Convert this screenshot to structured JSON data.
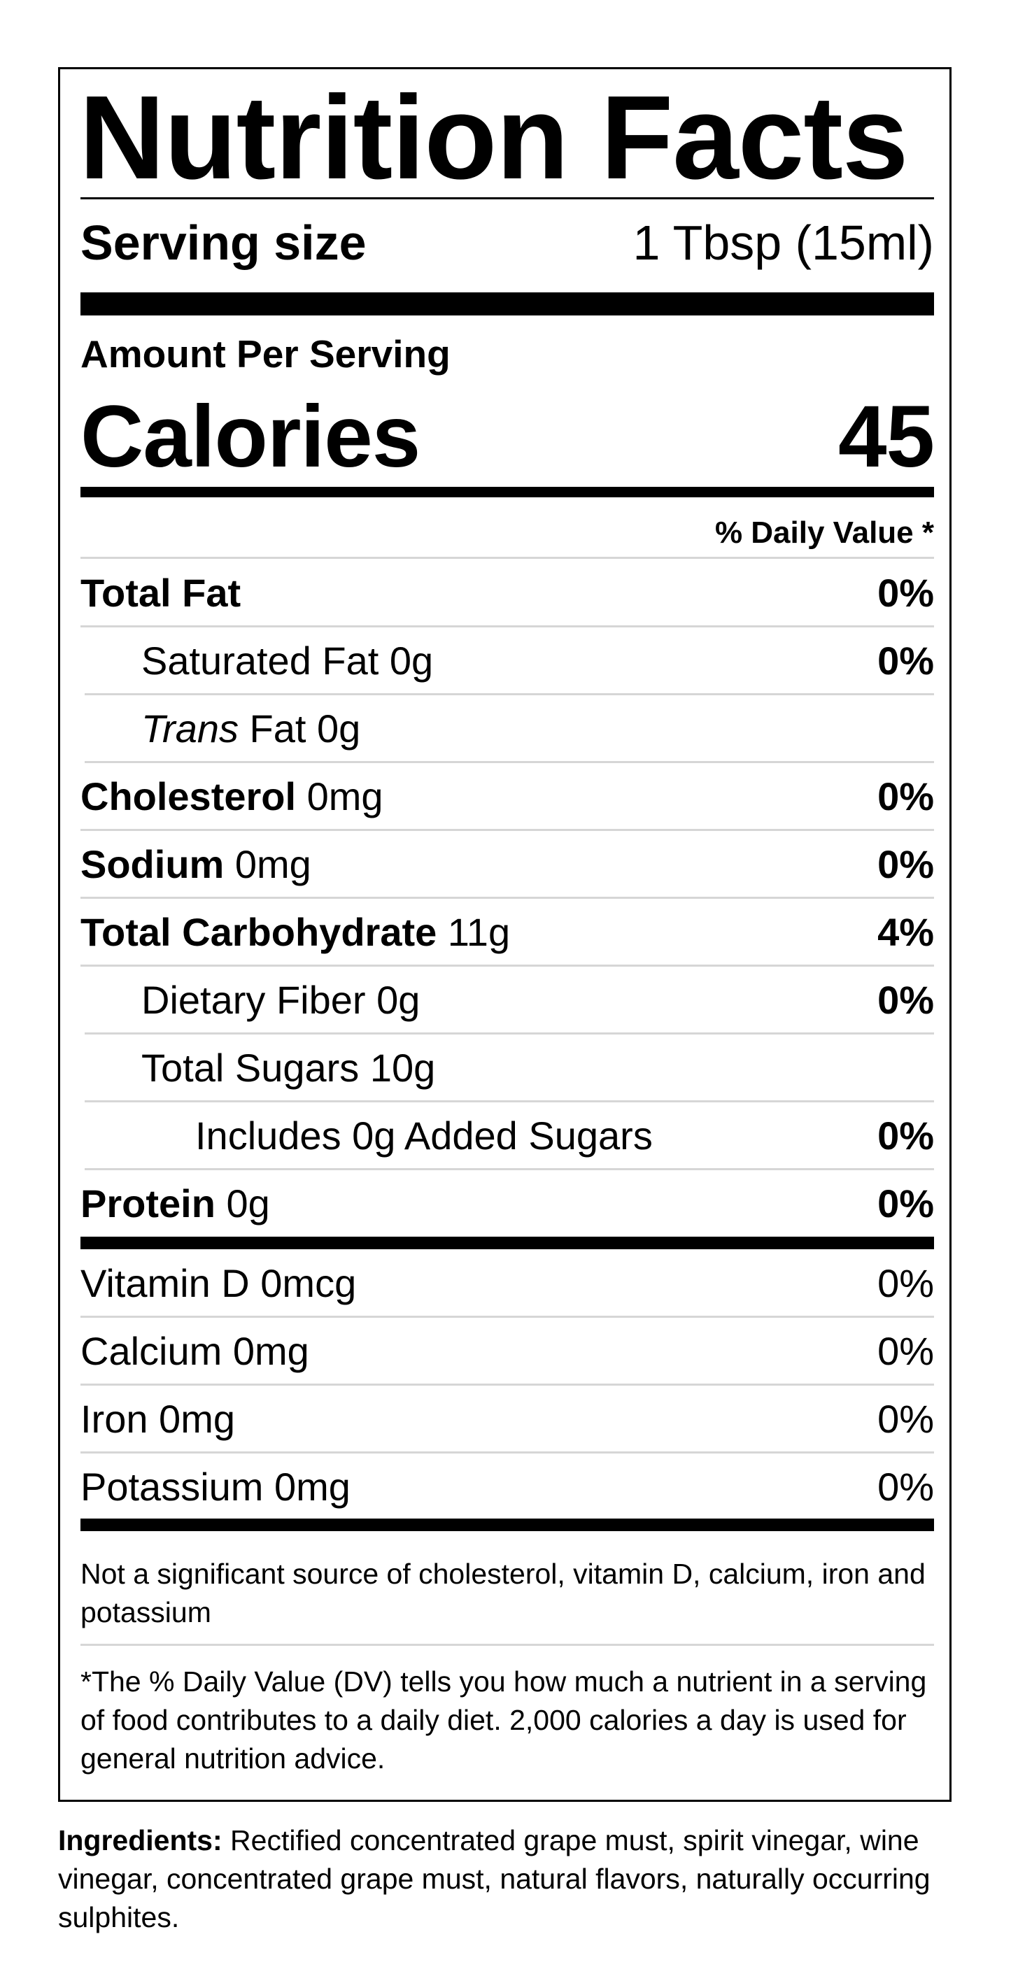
{
  "title": "Nutrition Facts",
  "serving": {
    "label": "Serving size",
    "value": "1 Tbsp (15ml)"
  },
  "amount_per_serving": "Amount Per Serving",
  "calories": {
    "label": "Calories",
    "value": "45"
  },
  "daily_value_header": "% Daily Value *",
  "nutrients": [
    {
      "label": "Total Fat",
      "amount": "",
      "dv": "0%"
    },
    {
      "label": "Saturated Fat 0g",
      "amount": "",
      "dv": "0%"
    },
    {
      "label": "Trans",
      "amount": " Fat 0g",
      "dv": ""
    },
    {
      "label": "Cholesterol",
      "amount": " 0mg",
      "dv": "0%"
    },
    {
      "label": "Sodium",
      "amount": " 0mg",
      "dv": "0%"
    },
    {
      "label": "Total Carbohydrate",
      "amount": " 11g",
      "dv": "4%"
    },
    {
      "label": "Dietary Fiber 0g",
      "amount": "",
      "dv": "0%"
    },
    {
      "label": "Total Sugars 10g",
      "amount": "",
      "dv": ""
    },
    {
      "label": "Includes 0g Added Sugars",
      "amount": "",
      "dv": "0%"
    },
    {
      "label": "Protein",
      "amount": " 0g",
      "dv": "0%"
    }
  ],
  "vitamins": [
    {
      "label": "Vitamin D 0mcg",
      "dv": "0%"
    },
    {
      "label": "Calcium 0mg",
      "dv": "0%"
    },
    {
      "label": "Iron 0mg",
      "dv": "0%"
    },
    {
      "label": "Potassium 0mg",
      "dv": "0%"
    }
  ],
  "footnote_1": "Not a significant source of cholesterol, vitamin D, calcium, iron and potassium",
  "footnote_2": "*The % Daily Value (DV) tells you how much a nutrient in a serving of food contributes to a daily diet. 2,000 calories a day is used for general nutrition advice.",
  "ingredients": {
    "label": "Ingredients:",
    "text": " Rectified concentrated grape must, spirit vinegar, wine vinegar, concentrated grape must, natural flavors, naturally occurring sulphites."
  }
}
